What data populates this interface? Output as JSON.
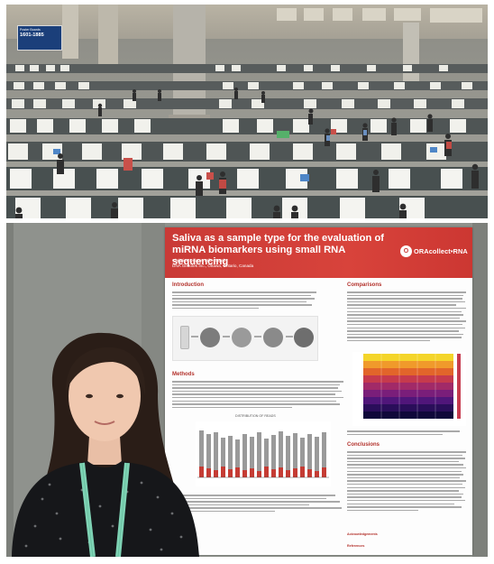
{
  "photo_top": {
    "banner": {
      "small_text": "Poster Boards",
      "number": "1601-1885"
    }
  },
  "poster": {
    "title_line1": "Saliva as a sample type for the evaluation of",
    "title_line2": "miRNA biomarkers using small RNA sequencing",
    "authors": "Christina Dillane, Mike Tayeb",
    "affiliation": "DNA Genotek Inc., Ottawa, Ontario, Canada",
    "brand_name": "ORAcollect•RNA",
    "brand_mark": "O",
    "sections": {
      "introduction": "Introduction",
      "methods": "Methods",
      "comparisons": "Comparisons",
      "conclusions": "Conclusions",
      "acknowledgements": "Acknowledgements",
      "references": "References"
    },
    "chart_caption": "DISTRIBUTION OF READS"
  },
  "colors": {
    "poster_header": "#c93a36",
    "section_heading": "#b3312b",
    "lanyard": "#7fd3b5"
  }
}
